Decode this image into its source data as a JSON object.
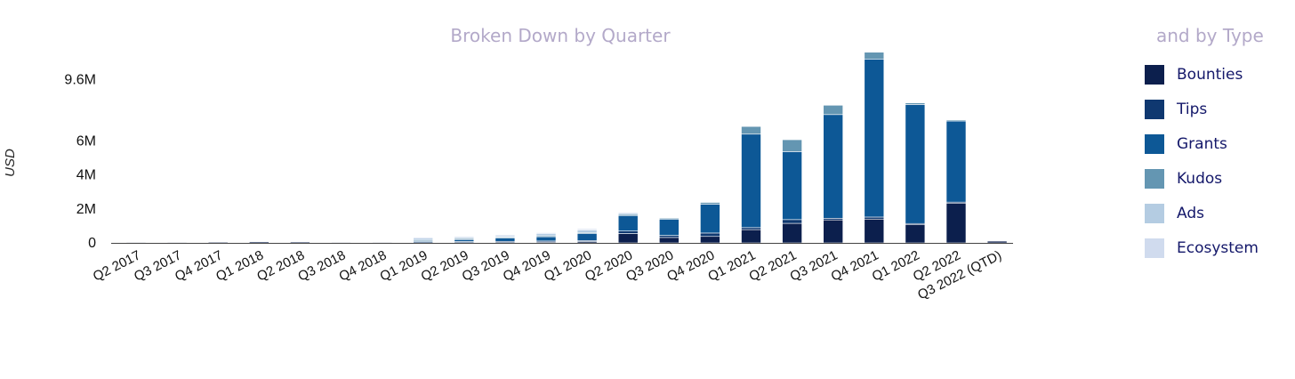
{
  "chart_data": {
    "type": "bar",
    "stacked": true,
    "title": "Broken Down by Quarter",
    "legend_title": "and by Type",
    "ylabel": "USD",
    "xlabel": "",
    "ylim": [
      0,
      11000000
    ],
    "yticks": [
      0,
      2000000,
      4000000,
      6000000,
      9600000
    ],
    "ytick_labels": [
      "0",
      "2M",
      "4M",
      "6M",
      "9.6M"
    ],
    "grid": false,
    "legend_position": "right",
    "categories": [
      "Q2 2017",
      "Q3 2017",
      "Q4 2017",
      "Q1 2018",
      "Q2 2018",
      "Q3 2018",
      "Q4 2018",
      "Q1 2019",
      "Q2 2019",
      "Q3 2019",
      "Q4 2019",
      "Q1 2020",
      "Q2 2020",
      "Q3 2020",
      "Q4 2020",
      "Q1 2021",
      "Q2 2021",
      "Q3 2021",
      "Q4 2021",
      "Q1 2022",
      "Q2 2022",
      "Q3 2022 (QTD)"
    ],
    "series": [
      {
        "name": "Bounties",
        "color": "#0c1f4d",
        "values": [
          20000,
          20000,
          30000,
          60000,
          40000,
          20000,
          20000,
          40000,
          50000,
          50000,
          60000,
          80000,
          550000,
          320000,
          380000,
          780000,
          1150000,
          1350000,
          1400000,
          1100000,
          2350000,
          100000
        ]
      },
      {
        "name": "Tips",
        "color": "#0f3870",
        "values": [
          0,
          0,
          0,
          0,
          0,
          0,
          0,
          10000,
          30000,
          40000,
          50000,
          60000,
          150000,
          120000,
          200000,
          120000,
          220000,
          100000,
          120000,
          40000,
          50000,
          0
        ]
      },
      {
        "name": "Grants",
        "color": "#0d5896",
        "values": [
          0,
          0,
          0,
          0,
          0,
          0,
          0,
          100000,
          150000,
          230000,
          280000,
          430000,
          920000,
          1000000,
          1700000,
          5500000,
          4000000,
          6100000,
          9300000,
          7000000,
          4800000,
          0
        ]
      },
      {
        "name": "Kudos",
        "color": "#6496b2",
        "values": [
          0,
          0,
          0,
          0,
          0,
          0,
          0,
          10000,
          20000,
          20000,
          30000,
          40000,
          50000,
          10000,
          100000,
          450000,
          700000,
          550000,
          400000,
          100000,
          30000,
          0
        ]
      },
      {
        "name": "Ads",
        "color": "#b4cce2",
        "values": [
          0,
          0,
          0,
          0,
          0,
          0,
          0,
          120000,
          90000,
          100000,
          130000,
          150000,
          100000,
          0,
          0,
          0,
          0,
          0,
          0,
          0,
          0,
          0
        ]
      },
      {
        "name": "Ecosystem",
        "color": "#d0dbee",
        "values": [
          0,
          0,
          0,
          0,
          0,
          0,
          0,
          50000,
          30000,
          30000,
          50000,
          70000,
          30000,
          0,
          0,
          0,
          0,
          0,
          0,
          0,
          0,
          0
        ]
      }
    ]
  }
}
